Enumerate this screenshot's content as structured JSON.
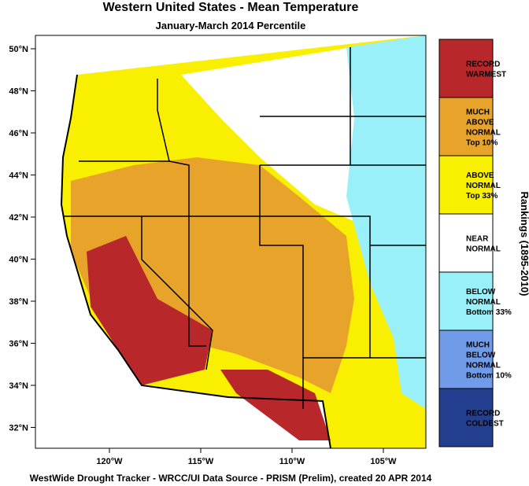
{
  "title": "Western United States - Mean Temperature",
  "subtitle": "January-March 2014 Percentile",
  "map": {
    "lat_labels": [
      "50°N",
      "48°N",
      "46°N",
      "44°N",
      "42°N",
      "40°N",
      "38°N",
      "36°N",
      "34°N",
      "32°N"
    ],
    "lon_labels": [
      "120°W",
      "115°W",
      "110°W",
      "105°W"
    ]
  },
  "legend": {
    "title": "Rankings (1895-2010)",
    "items": [
      {
        "lines": [
          "RECORD",
          "WARMEST"
        ],
        "color": "#b8272a"
      },
      {
        "lines": [
          "MUCH",
          "ABOVE",
          "NORMAL",
          "Top 10%"
        ],
        "color": "#e8a42a"
      },
      {
        "lines": [
          "ABOVE",
          "NORMAL",
          "Top 33%"
        ],
        "color": "#f8f000"
      },
      {
        "lines": [
          "NEAR",
          "NORMAL"
        ],
        "color": "#ffffff"
      },
      {
        "lines": [
          "BELOW",
          "NORMAL",
          "Bottom 33%"
        ],
        "color": "#99f0f8"
      },
      {
        "lines": [
          "MUCH",
          "BELOW",
          "NORMAL",
          "Bottom 10%"
        ],
        "color": "#6f9be8"
      },
      {
        "lines": [
          "RECORD",
          "COLDEST"
        ],
        "color": "#243f8f"
      }
    ]
  },
  "footer": "WestWide Drought Tracker - WRCC/UI  Data Source - PRISM (Prelim), created 20 APR 2014"
}
